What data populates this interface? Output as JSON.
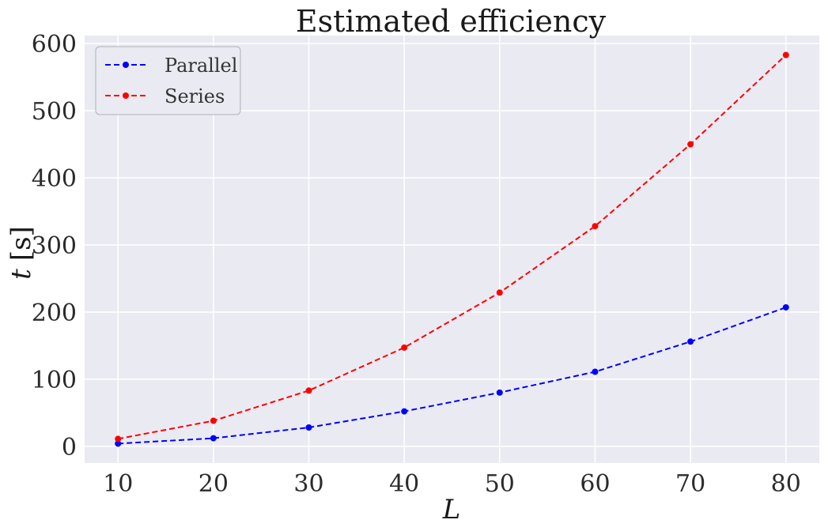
{
  "chart_data": {
    "type": "line",
    "title": "Estimated efficiency",
    "xlabel": "L",
    "ylabel_symbol": "t",
    "ylabel_unit": "[s]",
    "x": [
      10,
      20,
      30,
      40,
      50,
      60,
      70,
      80
    ],
    "xlim": [
      6.5,
      83.5
    ],
    "ylim": [
      -25,
      612
    ],
    "xticks": [
      10,
      20,
      30,
      40,
      50,
      60,
      70,
      80
    ],
    "yticks": [
      0,
      100,
      200,
      300,
      400,
      500,
      600
    ],
    "grid": true,
    "legend_position": "top-left",
    "series": [
      {
        "name": "Parallel",
        "color": "#0000ff",
        "linestyle": "dashed",
        "marker": "circle",
        "values": [
          4,
          12,
          28,
          52,
          80,
          111,
          156,
          207
        ]
      },
      {
        "name": "Series",
        "color": "#ff0000",
        "linestyle": "dashed",
        "marker": "circle",
        "values": [
          11,
          38,
          83,
          147,
          229,
          328,
          450,
          583
        ]
      }
    ],
    "colors": {
      "plot_background": "#eaeaf2",
      "grid": "#ffffff"
    }
  }
}
